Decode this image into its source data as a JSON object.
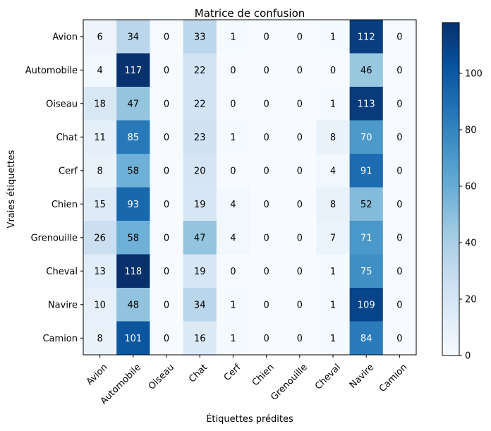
{
  "chart_data": {
    "type": "heatmap",
    "title": "Matrice de confusion",
    "xlabel": "Étiquettes prédites",
    "ylabel": "Vraies étiquettes",
    "x_categories": [
      "Avion",
      "Automobile",
      "Oiseau",
      "Chat",
      "Cerf",
      "Chien",
      "Grenouille",
      "Cheval",
      "Navire",
      "Camion"
    ],
    "y_categories": [
      "Avion",
      "Automobile",
      "Oiseau",
      "Chat",
      "Cerf",
      "Chien",
      "Grenouille",
      "Cheval",
      "Navire",
      "Camion"
    ],
    "values": [
      [
        6,
        34,
        0,
        33,
        1,
        0,
        0,
        1,
        112,
        0
      ],
      [
        4,
        117,
        0,
        22,
        0,
        0,
        0,
        0,
        46,
        0
      ],
      [
        18,
        47,
        0,
        22,
        0,
        0,
        0,
        1,
        113,
        0
      ],
      [
        11,
        85,
        0,
        23,
        1,
        0,
        0,
        8,
        70,
        0
      ],
      [
        8,
        58,
        0,
        20,
        0,
        0,
        0,
        4,
        91,
        0
      ],
      [
        15,
        93,
        0,
        19,
        4,
        0,
        0,
        8,
        52,
        0
      ],
      [
        26,
        58,
        0,
        47,
        4,
        0,
        0,
        7,
        71,
        0
      ],
      [
        13,
        118,
        0,
        19,
        0,
        0,
        0,
        1,
        75,
        0
      ],
      [
        10,
        48,
        0,
        34,
        1,
        0,
        0,
        1,
        109,
        0
      ],
      [
        8,
        101,
        0,
        16,
        1,
        0,
        0,
        1,
        84,
        0
      ]
    ],
    "colormap": "Blues",
    "vmin": 0,
    "vmax": 118,
    "colorbar_ticks": [
      0,
      20,
      40,
      60,
      80,
      100
    ],
    "grid": false
  }
}
